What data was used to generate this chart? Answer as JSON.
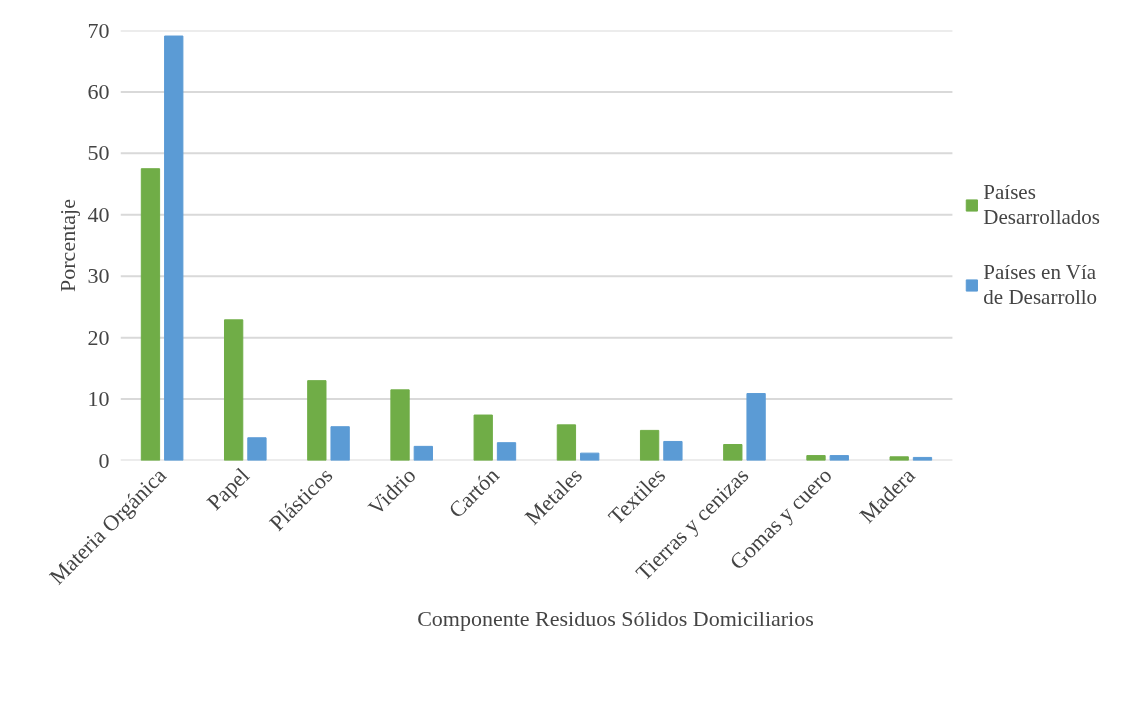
{
  "chart_data": {
    "type": "bar",
    "xlabel": "Componente Residuos Sólidos Domiciliarios",
    "ylabel": "Porcentaje",
    "categories": [
      "Materia Orgánica",
      "Papel",
      "Plásticos",
      "Vidrio",
      "Cartón",
      "Metales",
      "Textiles",
      "Tierras y cenizas",
      "Gomas y cuero",
      "Madera"
    ],
    "series": [
      {
        "name": "Países Desarrollados",
        "color": "#70ad47",
        "values": [
          47.5,
          22.9,
          13.0,
          11.5,
          7.4,
          5.8,
          4.9,
          2.6,
          0.8,
          0.6
        ]
      },
      {
        "name": "Países en Vía de Desarrollo",
        "color": "#5b9bd5",
        "values": [
          69.1,
          3.7,
          5.5,
          2.3,
          2.9,
          1.2,
          3.1,
          10.9,
          0.8,
          0.5
        ]
      }
    ],
    "ylim": [
      0,
      70
    ],
    "yticks": [
      0,
      10,
      20,
      30,
      40,
      50,
      60,
      70
    ],
    "grid": "y",
    "legend": "right"
  }
}
